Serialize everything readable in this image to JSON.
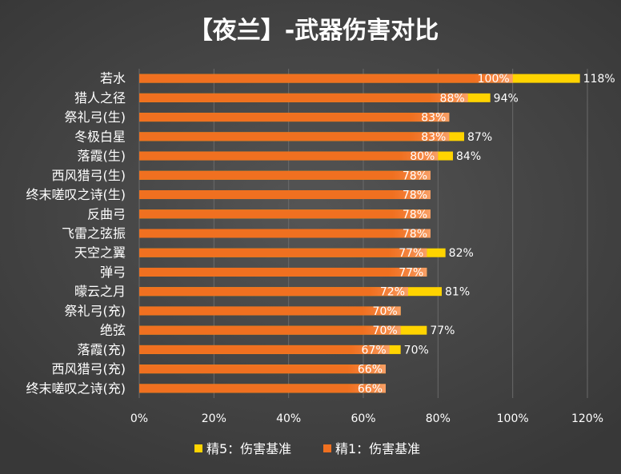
{
  "chart_data": {
    "type": "bar",
    "orientation": "horizontal",
    "title": "【夜兰】-武器伤害对比",
    "categories": [
      "若水",
      "猎人之径",
      "祭礼弓(生)",
      "冬极白星",
      "落霞(生)",
      "西风猎弓(生)",
      "终末嗟叹之诗(生)",
      "反曲弓",
      "飞雷之弦振",
      "天空之翼",
      "弹弓",
      "曚云之月",
      "祭礼弓(充)",
      "绝弦",
      "落霞(充)",
      "西风猎弓(充)",
      "终末嗟叹之诗(充)"
    ],
    "series": [
      {
        "name": "精5：伤害基准",
        "color": "#FFD400",
        "values": [
          118,
          94,
          83,
          87,
          84,
          78,
          78,
          78,
          78,
          82,
          77,
          81,
          70,
          77,
          70,
          66,
          66
        ],
        "labels": [
          "118%",
          "94%",
          "",
          "87%",
          "84%",
          "",
          "",
          "",
          "",
          "82%",
          "",
          "81%",
          "",
          "77%",
          "70%",
          "",
          ""
        ]
      },
      {
        "name": "精1：伤害基准",
        "color": "#F07020",
        "values": [
          100,
          88,
          83,
          83,
          80,
          78,
          78,
          78,
          78,
          77,
          77,
          72,
          70,
          70,
          67,
          66,
          66
        ],
        "labels": [
          "100%",
          "88%",
          "83%",
          "83%",
          "80%",
          "78%",
          "78%",
          "78%",
          "78%",
          "77%",
          "77%",
          "72%",
          "70%",
          "70%",
          "67%",
          "66%",
          "66%"
        ]
      }
    ],
    "xaxis": {
      "min": 0,
      "max": 120,
      "step": 20,
      "tick_labels": [
        "0%",
        "20%",
        "40%",
        "60%",
        "80%",
        "100%",
        "120%"
      ]
    },
    "legend": {
      "position": "bottom"
    },
    "grid": true
  }
}
